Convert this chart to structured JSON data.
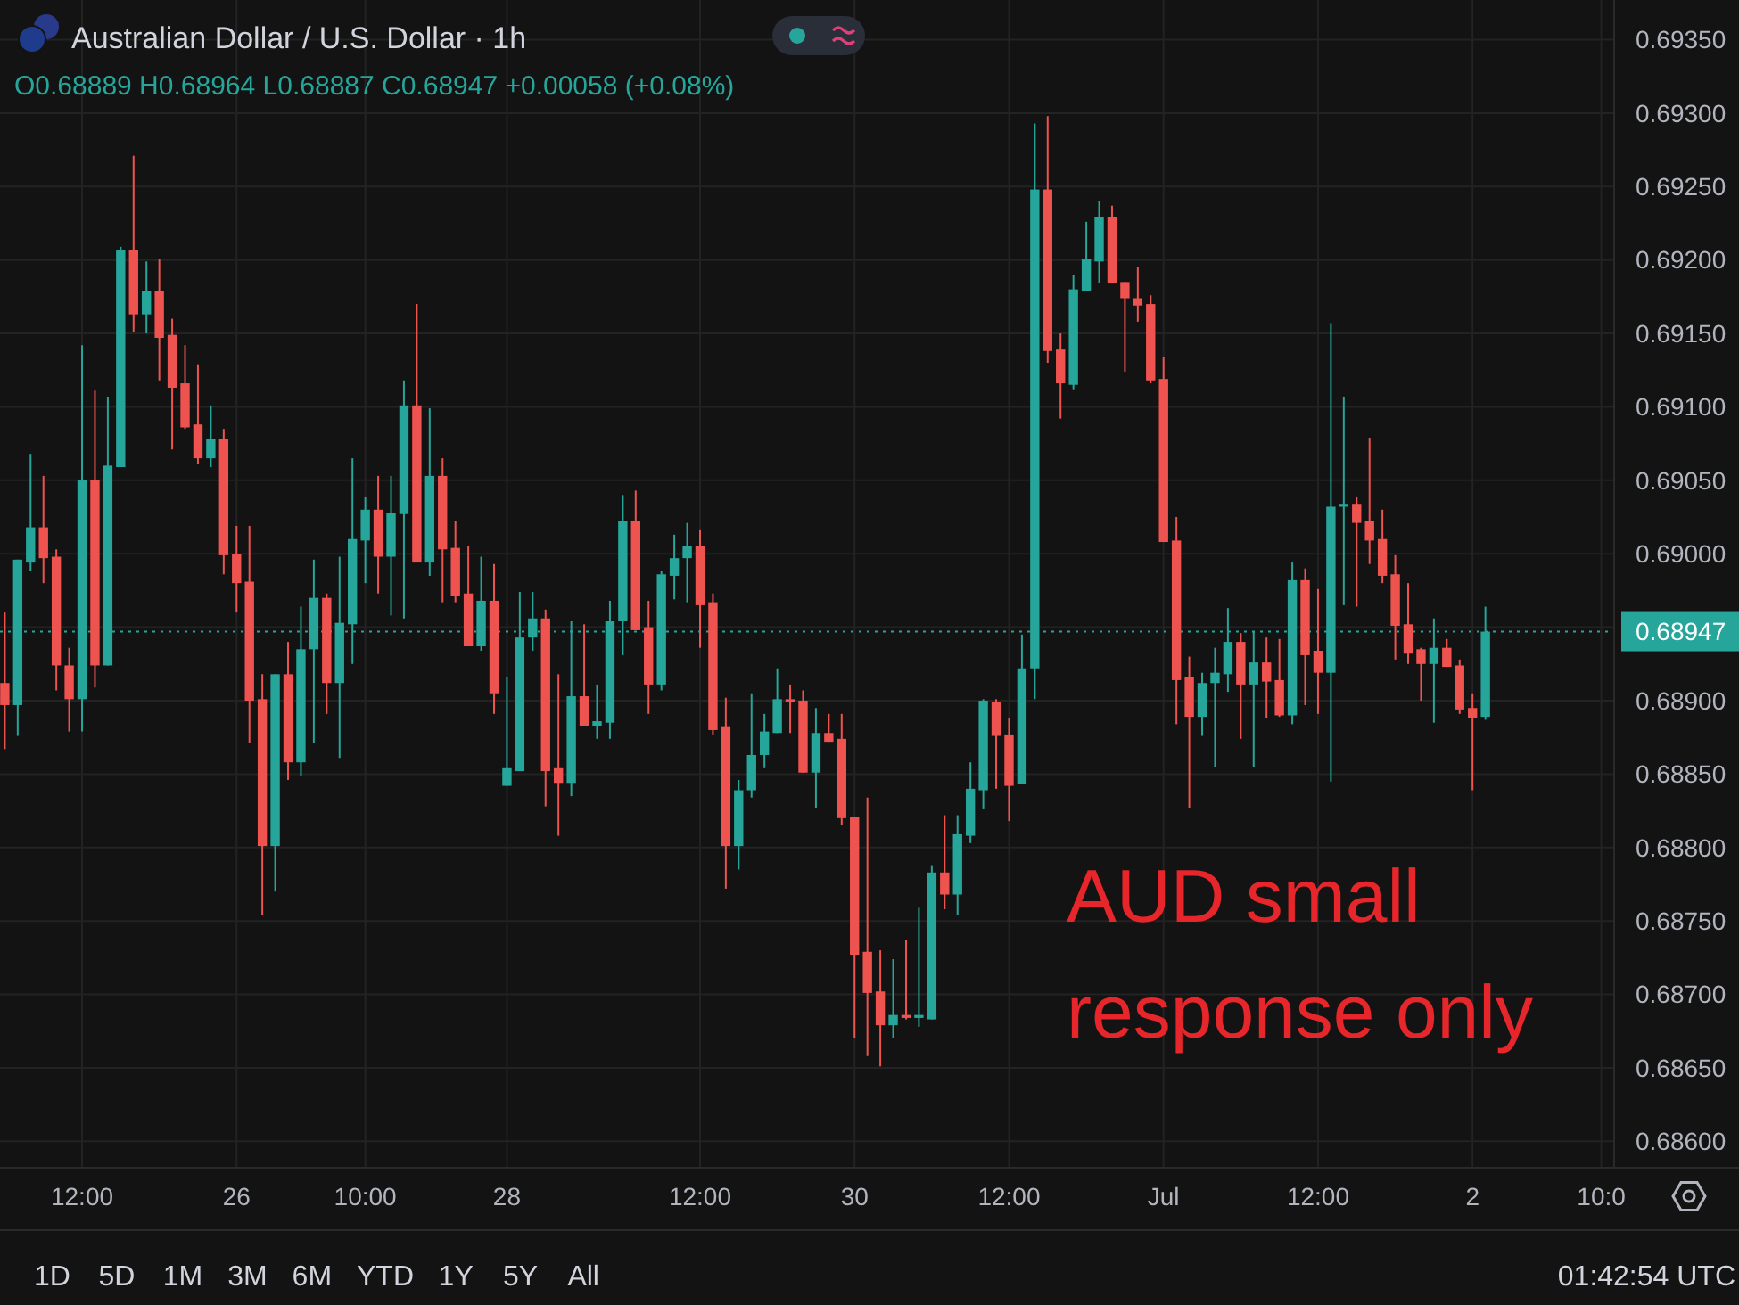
{
  "chart_data": {
    "type": "candlestick",
    "title": "Australian Dollar / U.S. Dollar · 1h",
    "subtitle": "O0.68889 H0.68964 L0.68887 C0.68947 +0.00058 (+0.08%)",
    "categories": [
      null,
      null,
      null,
      null,
      null,
      null,
      "12:00",
      null,
      null,
      null,
      null,
      null,
      null,
      null,
      null,
      null,
      null,
      null,
      "26",
      null,
      null,
      null,
      null,
      null,
      null,
      null,
      null,
      null,
      "10:00",
      null,
      null,
      null,
      null,
      null,
      null,
      null,
      null,
      null,
      null,
      "28",
      null,
      null,
      null,
      null,
      null,
      null,
      null,
      null,
      null,
      null,
      null,
      null,
      null,
      null,
      "12:00",
      null,
      null,
      null,
      null,
      null,
      null,
      null,
      null,
      null,
      null,
      null,
      "30",
      null,
      null,
      null,
      null,
      null,
      null,
      null,
      null,
      null,
      null,
      null,
      "12:00",
      null,
      null,
      null,
      null,
      null,
      null,
      null,
      null,
      null,
      null,
      null,
      "Jul",
      null,
      null,
      null,
      null,
      null,
      null,
      null,
      null,
      null,
      null,
      null,
      "12:00",
      null,
      null,
      null,
      null,
      null,
      null,
      null,
      null,
      null,
      null,
      null,
      "2",
      null,
      null,
      null,
      null,
      null,
      null,
      null,
      null,
      null,
      "10:0",
      null
    ],
    "ohlc": [
      [
        0.68912,
        0.6896,
        0.68867,
        0.68897
      ],
      [
        0.68897,
        0.68996,
        0.68876,
        0.68996
      ],
      [
        0.68994,
        0.69068,
        0.68988,
        0.69018
      ],
      [
        0.69018,
        0.69053,
        0.6898,
        0.68997
      ],
      [
        0.68998,
        0.69003,
        0.68907,
        0.68924
      ],
      [
        0.68924,
        0.68936,
        0.68879,
        0.68901
      ],
      [
        0.68901,
        0.69142,
        0.68879,
        0.6905
      ],
      [
        0.6905,
        0.69111,
        0.68909,
        0.68924
      ],
      [
        0.68924,
        0.69107,
        0.68924,
        0.6906
      ],
      [
        0.69059,
        0.69209,
        0.69059,
        0.69207
      ],
      [
        0.69207,
        0.69271,
        0.69151,
        0.69163
      ],
      [
        0.69163,
        0.69199,
        0.6915,
        0.69179
      ],
      [
        0.69179,
        0.69201,
        0.69118,
        0.69147
      ],
      [
        0.69149,
        0.6916,
        0.69071,
        0.69113
      ],
      [
        0.69116,
        0.69142,
        0.69085,
        0.69086
      ],
      [
        0.69088,
        0.69129,
        0.69061,
        0.69065
      ],
      [
        0.69065,
        0.69101,
        0.69059,
        0.69078
      ],
      [
        0.69078,
        0.69085,
        0.68986,
        0.68999
      ],
      [
        0.69,
        0.69019,
        0.6896,
        0.6898
      ],
      [
        0.68981,
        0.69019,
        0.68871,
        0.689
      ],
      [
        0.68901,
        0.68918,
        0.68754,
        0.68801
      ],
      [
        0.68801,
        0.68918,
        0.6877,
        0.68918
      ],
      [
        0.68918,
        0.6894,
        0.68846,
        0.68858
      ],
      [
        0.68858,
        0.68964,
        0.68849,
        0.68935
      ],
      [
        0.68935,
        0.68996,
        0.68871,
        0.6897
      ],
      [
        0.6897,
        0.68973,
        0.68891,
        0.68912
      ],
      [
        0.68912,
        0.68998,
        0.68861,
        0.68953
      ],
      [
        0.68952,
        0.69065,
        0.68925,
        0.6901
      ],
      [
        0.69009,
        0.69039,
        0.6898,
        0.6903
      ],
      [
        0.6903,
        0.69053,
        0.68973,
        0.68998
      ],
      [
        0.68998,
        0.69053,
        0.68958,
        0.69028
      ],
      [
        0.69027,
        0.69118,
        0.68956,
        0.69101
      ],
      [
        0.69101,
        0.6917,
        0.68994,
        0.68994
      ],
      [
        0.68994,
        0.69099,
        0.68985,
        0.69053
      ],
      [
        0.69053,
        0.69065,
        0.68967,
        0.69003
      ],
      [
        0.69004,
        0.69022,
        0.68967,
        0.68971
      ],
      [
        0.68973,
        0.69005,
        0.68937,
        0.68937
      ],
      [
        0.68937,
        0.68998,
        0.68934,
        0.68968
      ],
      [
        0.68968,
        0.68993,
        0.68891,
        0.68905
      ],
      [
        0.68842,
        0.68916,
        0.68842,
        0.68854
      ],
      [
        0.68852,
        0.68974,
        0.68852,
        0.68943
      ],
      [
        0.68943,
        0.68974,
        0.68934,
        0.68956
      ],
      [
        0.68956,
        0.68962,
        0.68828,
        0.68852
      ],
      [
        0.68854,
        0.68918,
        0.68808,
        0.68844
      ],
      [
        0.68844,
        0.68954,
        0.68835,
        0.68903
      ],
      [
        0.68903,
        0.68952,
        0.68883,
        0.68883
      ],
      [
        0.68883,
        0.68911,
        0.68874,
        0.68886
      ],
      [
        0.68885,
        0.68968,
        0.68874,
        0.68954
      ],
      [
        0.68954,
        0.6904,
        0.68931,
        0.69022
      ],
      [
        0.69022,
        0.69043,
        0.68948,
        0.68948
      ],
      [
        0.6895,
        0.68968,
        0.68891,
        0.68911
      ],
      [
        0.68911,
        0.68988,
        0.68907,
        0.68986
      ],
      [
        0.68985,
        0.69013,
        0.68969,
        0.68997
      ],
      [
        0.68997,
        0.69021,
        0.68967,
        0.69005
      ],
      [
        0.69005,
        0.69016,
        0.68936,
        0.68965
      ],
      [
        0.68967,
        0.68973,
        0.68877,
        0.6888
      ],
      [
        0.68882,
        0.68902,
        0.68772,
        0.68801
      ],
      [
        0.68801,
        0.68846,
        0.68785,
        0.68839
      ],
      [
        0.68839,
        0.68905,
        0.68834,
        0.68863
      ],
      [
        0.68863,
        0.68891,
        0.68854,
        0.68879
      ],
      [
        0.68878,
        0.68922,
        0.68878,
        0.68901
      ],
      [
        0.68901,
        0.68911,
        0.68878,
        0.68899
      ],
      [
        0.689,
        0.68907,
        0.68851,
        0.68851
      ],
      [
        0.68851,
        0.68895,
        0.68827,
        0.68878
      ],
      [
        0.68878,
        0.68891,
        0.68872,
        0.68872
      ],
      [
        0.68874,
        0.68891,
        0.68815,
        0.6882
      ],
      [
        0.68821,
        0.68821,
        0.6867,
        0.68727
      ],
      [
        0.68729,
        0.68834,
        0.68658,
        0.68701
      ],
      [
        0.68702,
        0.6873,
        0.68651,
        0.68679
      ],
      [
        0.68679,
        0.68724,
        0.6867,
        0.68686
      ],
      [
        0.68686,
        0.68737,
        0.68683,
        0.68684
      ],
      [
        0.68684,
        0.68759,
        0.68678,
        0.68686
      ],
      [
        0.68683,
        0.68788,
        0.68683,
        0.68783
      ],
      [
        0.68783,
        0.68822,
        0.68758,
        0.68768
      ],
      [
        0.68768,
        0.68822,
        0.68754,
        0.68809
      ],
      [
        0.68808,
        0.68858,
        0.68803,
        0.6884
      ],
      [
        0.68839,
        0.68901,
        0.68826,
        0.689
      ],
      [
        0.68899,
        0.68901,
        0.6884,
        0.68876
      ],
      [
        0.68877,
        0.68888,
        0.68818,
        0.68842
      ],
      [
        0.68843,
        0.68945,
        0.68843,
        0.68922
      ],
      [
        0.68922,
        0.69293,
        0.68901,
        0.69248
      ],
      [
        0.69248,
        0.69298,
        0.6913,
        0.69138
      ],
      [
        0.69139,
        0.6915,
        0.69092,
        0.69116
      ],
      [
        0.69115,
        0.6919,
        0.69112,
        0.6918
      ],
      [
        0.69179,
        0.69226,
        0.69179,
        0.69201
      ],
      [
        0.69199,
        0.6924,
        0.69184,
        0.69229
      ],
      [
        0.69229,
        0.69237,
        0.69184,
        0.69184
      ],
      [
        0.69185,
        0.69185,
        0.69124,
        0.69174
      ],
      [
        0.69174,
        0.69195,
        0.69158,
        0.69169
      ],
      [
        0.6917,
        0.69176,
        0.69116,
        0.69118
      ],
      [
        0.69119,
        0.69134,
        0.69008,
        0.69008
      ],
      [
        0.69009,
        0.69025,
        0.68884,
        0.68914
      ],
      [
        0.68916,
        0.6893,
        0.68827,
        0.68889
      ],
      [
        0.68889,
        0.68919,
        0.68876,
        0.68912
      ],
      [
        0.68912,
        0.68936,
        0.68855,
        0.68919
      ],
      [
        0.68918,
        0.68963,
        0.68906,
        0.6894
      ],
      [
        0.6894,
        0.68946,
        0.68874,
        0.68911
      ],
      [
        0.68911,
        0.68947,
        0.68855,
        0.68926
      ],
      [
        0.68926,
        0.68943,
        0.68888,
        0.68913
      ],
      [
        0.68914,
        0.68942,
        0.68889,
        0.6889
      ],
      [
        0.6889,
        0.68994,
        0.68884,
        0.68982
      ],
      [
        0.68982,
        0.6899,
        0.68897,
        0.68931
      ],
      [
        0.68934,
        0.68976,
        0.68891,
        0.68919
      ],
      [
        0.68919,
        0.69157,
        0.68845,
        0.69032
      ],
      [
        0.69032,
        0.69107,
        0.68965,
        0.69034
      ],
      [
        0.69034,
        0.69039,
        0.68964,
        0.69021
      ],
      [
        0.69022,
        0.69079,
        0.68993,
        0.69009
      ],
      [
        0.6901,
        0.6903,
        0.6898,
        0.68985
      ],
      [
        0.68986,
        0.68999,
        0.68928,
        0.68951
      ],
      [
        0.68952,
        0.6898,
        0.68925,
        0.68932
      ],
      [
        0.68935,
        0.68936,
        0.689,
        0.68925
      ],
      [
        0.68925,
        0.68956,
        0.68885,
        0.68936
      ],
      [
        0.68936,
        0.68942,
        0.68923,
        0.68923
      ],
      [
        0.68924,
        0.68928,
        0.68891,
        0.68894
      ],
      [
        0.68895,
        0.68905,
        0.68839,
        0.68888
      ],
      [
        0.68889,
        0.68964,
        0.68887,
        0.68947
      ],
      null,
      null,
      null,
      null,
      null,
      null,
      null,
      null,
      null,
      null
    ],
    "colors": [
      "#ef5350",
      "#26a69a",
      "#26a69a",
      "#ef5350",
      "#ef5350",
      "#ef5350",
      "#26a69a",
      "#ef5350",
      "#26a69a",
      "#26a69a",
      "#ef5350",
      "#26a69a",
      "#ef5350",
      "#ef5350",
      "#ef5350",
      "#ef5350",
      "#26a69a",
      "#ef5350",
      "#ef5350",
      "#ef5350",
      "#ef5350",
      "#26a69a",
      "#ef5350",
      "#26a69a",
      "#26a69a",
      "#ef5350",
      "#26a69a",
      "#26a69a",
      "#26a69a",
      "#ef5350",
      "#26a69a",
      "#26a69a",
      "#ef5350",
      "#26a69a",
      "#ef5350",
      "#ef5350",
      "#ef5350",
      "#26a69a",
      "#ef5350",
      "#26a69a",
      "#26a69a",
      "#26a69a",
      "#ef5350",
      "#ef5350",
      "#26a69a",
      "#ef5350",
      "#26a69a",
      "#26a69a",
      "#26a69a",
      "#ef5350",
      "#ef5350",
      "#26a69a",
      "#26a69a",
      "#26a69a",
      "#ef5350",
      "#ef5350",
      "#ef5350",
      "#26a69a",
      "#26a69a",
      "#26a69a",
      "#26a69a",
      "#ef5350",
      "#ef5350",
      "#26a69a",
      "#ef5350",
      "#ef5350",
      "#ef5350",
      "#ef5350",
      "#ef5350",
      "#26a69a",
      "#ef5350",
      "#26a69a",
      "#26a69a",
      "#ef5350",
      "#26a69a",
      "#26a69a",
      "#26a69a",
      "#ef5350",
      "#ef5350",
      "#26a69a",
      "#26a69a",
      "#ef5350",
      "#ef5350",
      "#26a69a",
      "#26a69a",
      "#26a69a",
      "#ef5350",
      "#ef5350",
      "#ef5350",
      "#ef5350",
      "#ef5350",
      "#ef5350",
      "#ef5350",
      "#26a69a",
      "#26a69a",
      "#26a69a",
      "#ef5350",
      "#26a69a",
      "#ef5350",
      "#ef5350",
      "#26a69a",
      "#ef5350",
      "#ef5350",
      "#26a69a",
      "#26a69a",
      "#ef5350",
      "#ef5350",
      "#ef5350",
      "#ef5350",
      "#ef5350",
      "#ef5350",
      "#26a69a",
      "#ef5350",
      "#ef5350",
      "#ef5350",
      "#26a69a",
      null,
      null,
      null,
      null,
      null,
      null,
      null,
      null,
      null,
      null
    ],
    "ylim": [
      0.68582,
      0.69377
    ],
    "yticks": [
      {
        "value": 0.686,
        "label": "0.68600"
      },
      {
        "value": 0.6865,
        "label": "0.68650"
      },
      {
        "value": 0.687,
        "label": "0.68700"
      },
      {
        "value": 0.6875,
        "label": "0.68750"
      },
      {
        "value": 0.688,
        "label": "0.68800"
      },
      {
        "value": 0.6885,
        "label": "0.68850"
      },
      {
        "value": 0.689,
        "label": "0.68900"
      },
      {
        "value": 0.6895,
        "label": null
      },
      {
        "value": 0.69,
        "label": "0.69000"
      },
      {
        "value": 0.6905,
        "label": "0.69050"
      },
      {
        "value": 0.691,
        "label": "0.69100"
      },
      {
        "value": 0.6915,
        "label": "0.69150"
      },
      {
        "value": 0.692,
        "label": "0.69200"
      },
      {
        "value": 0.6925,
        "label": "0.69250"
      },
      {
        "value": 0.693,
        "label": "0.69300"
      },
      {
        "value": 0.6935,
        "label": "0.69350"
      }
    ],
    "grid": true,
    "ref_lines": [
      {
        "axis": "y",
        "value": 0.68947,
        "label": "0.68947",
        "color": "#26a69a",
        "line_style": "dotted"
      }
    ],
    "annotations": [
      "AUD small response only",
      "1D",
      "5D",
      "1M",
      "3M",
      "6M",
      "YTD",
      "1Y",
      "5Y",
      "All",
      "01:42:54 UTC"
    ]
  }
}
